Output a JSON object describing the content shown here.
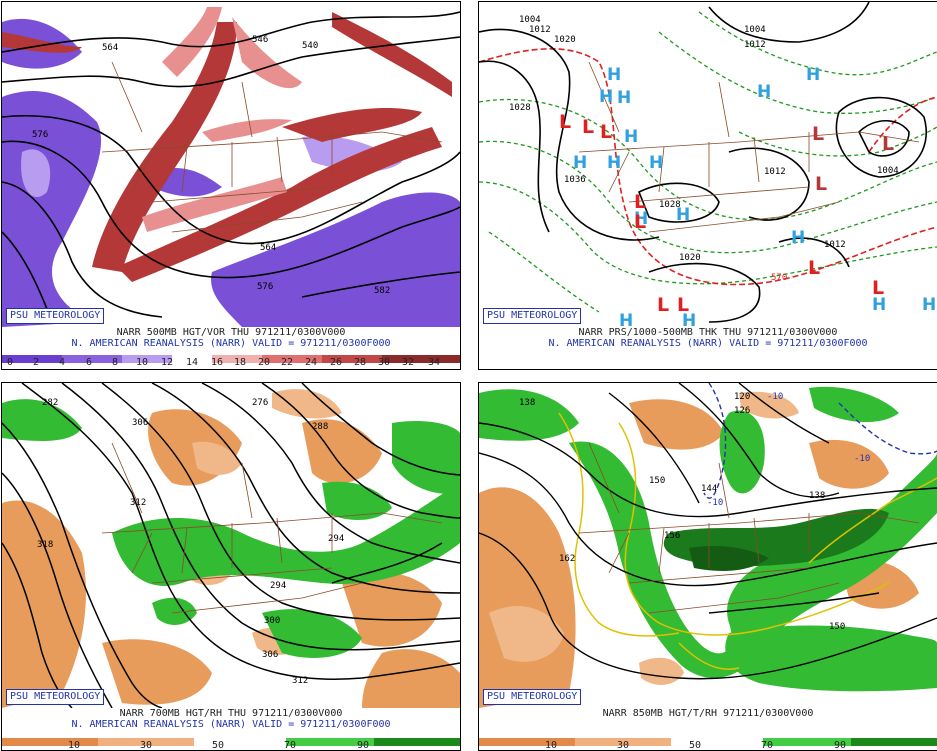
{
  "branding": "PSU METEOROLOGY",
  "colors": {
    "vort_purple": "#7a50d6",
    "vort_light": "#b79cf0",
    "vort_red": "#b43838",
    "vort_pink": "#e89090",
    "high_blue": "#2fa0e0",
    "low_red": "#e02020",
    "thick_green": "#1f9a1f",
    "rh_green": "#33bb33",
    "rh_dark_green": "#1b7a1b",
    "rh_orange": "#e89c5c",
    "temp_yellow": "#e0c000"
  },
  "panels": {
    "top_left": {
      "title": "NARR 500MB HGT/VOR THU 971211/0300V000",
      "subtitle": "N. AMERICAN REANALYSIS (NARR) VALID = 971211/0300F000",
      "colorbar": [
        "0",
        "2",
        "4",
        "6",
        "8",
        "10",
        "12",
        "14",
        "16",
        "18",
        "20",
        "22",
        "24",
        "26",
        "28",
        "30",
        "32",
        "34"
      ],
      "contour_labels": [
        "564",
        "546",
        "540",
        "576",
        "564",
        "576",
        "582"
      ]
    },
    "top_right": {
      "title": "NARR PRS/1000-500MB THK THU 971211/0300V000",
      "subtitle": "N. AMERICAN REANALYSIS (NARR) VALID = 971211/0300F000",
      "contour_labels": [
        "1004",
        "1012",
        "1020",
        "1004",
        "1028",
        "1036",
        "1028",
        "1012",
        "1012",
        "1004",
        "1020",
        "1012",
        "570"
      ],
      "high_symbol": "H",
      "low_symbol": "L"
    },
    "bottom_left": {
      "title": "NARR 700MB HGT/RH THU 971211/0300V000",
      "subtitle": "N. AMERICAN REANALYSIS (NARR) VALID = 971211/0300F000",
      "colorbar": [
        "10",
        "30",
        "50",
        "70",
        "90"
      ],
      "contour_labels": [
        "282",
        "276",
        "288",
        "306",
        "318",
        "312",
        "294",
        "294",
        "300",
        "306",
        "312"
      ]
    },
    "bottom_right": {
      "title": "NARR 850MB HGT/T/RH 971211/0300V000",
      "colorbar": [
        "10",
        "30",
        "50",
        "70",
        "90"
      ],
      "contour_labels": [
        "138",
        "126",
        "120",
        "-10",
        "-10",
        "-10",
        "144",
        "150",
        "156",
        "162",
        "138",
        "150"
      ]
    }
  }
}
